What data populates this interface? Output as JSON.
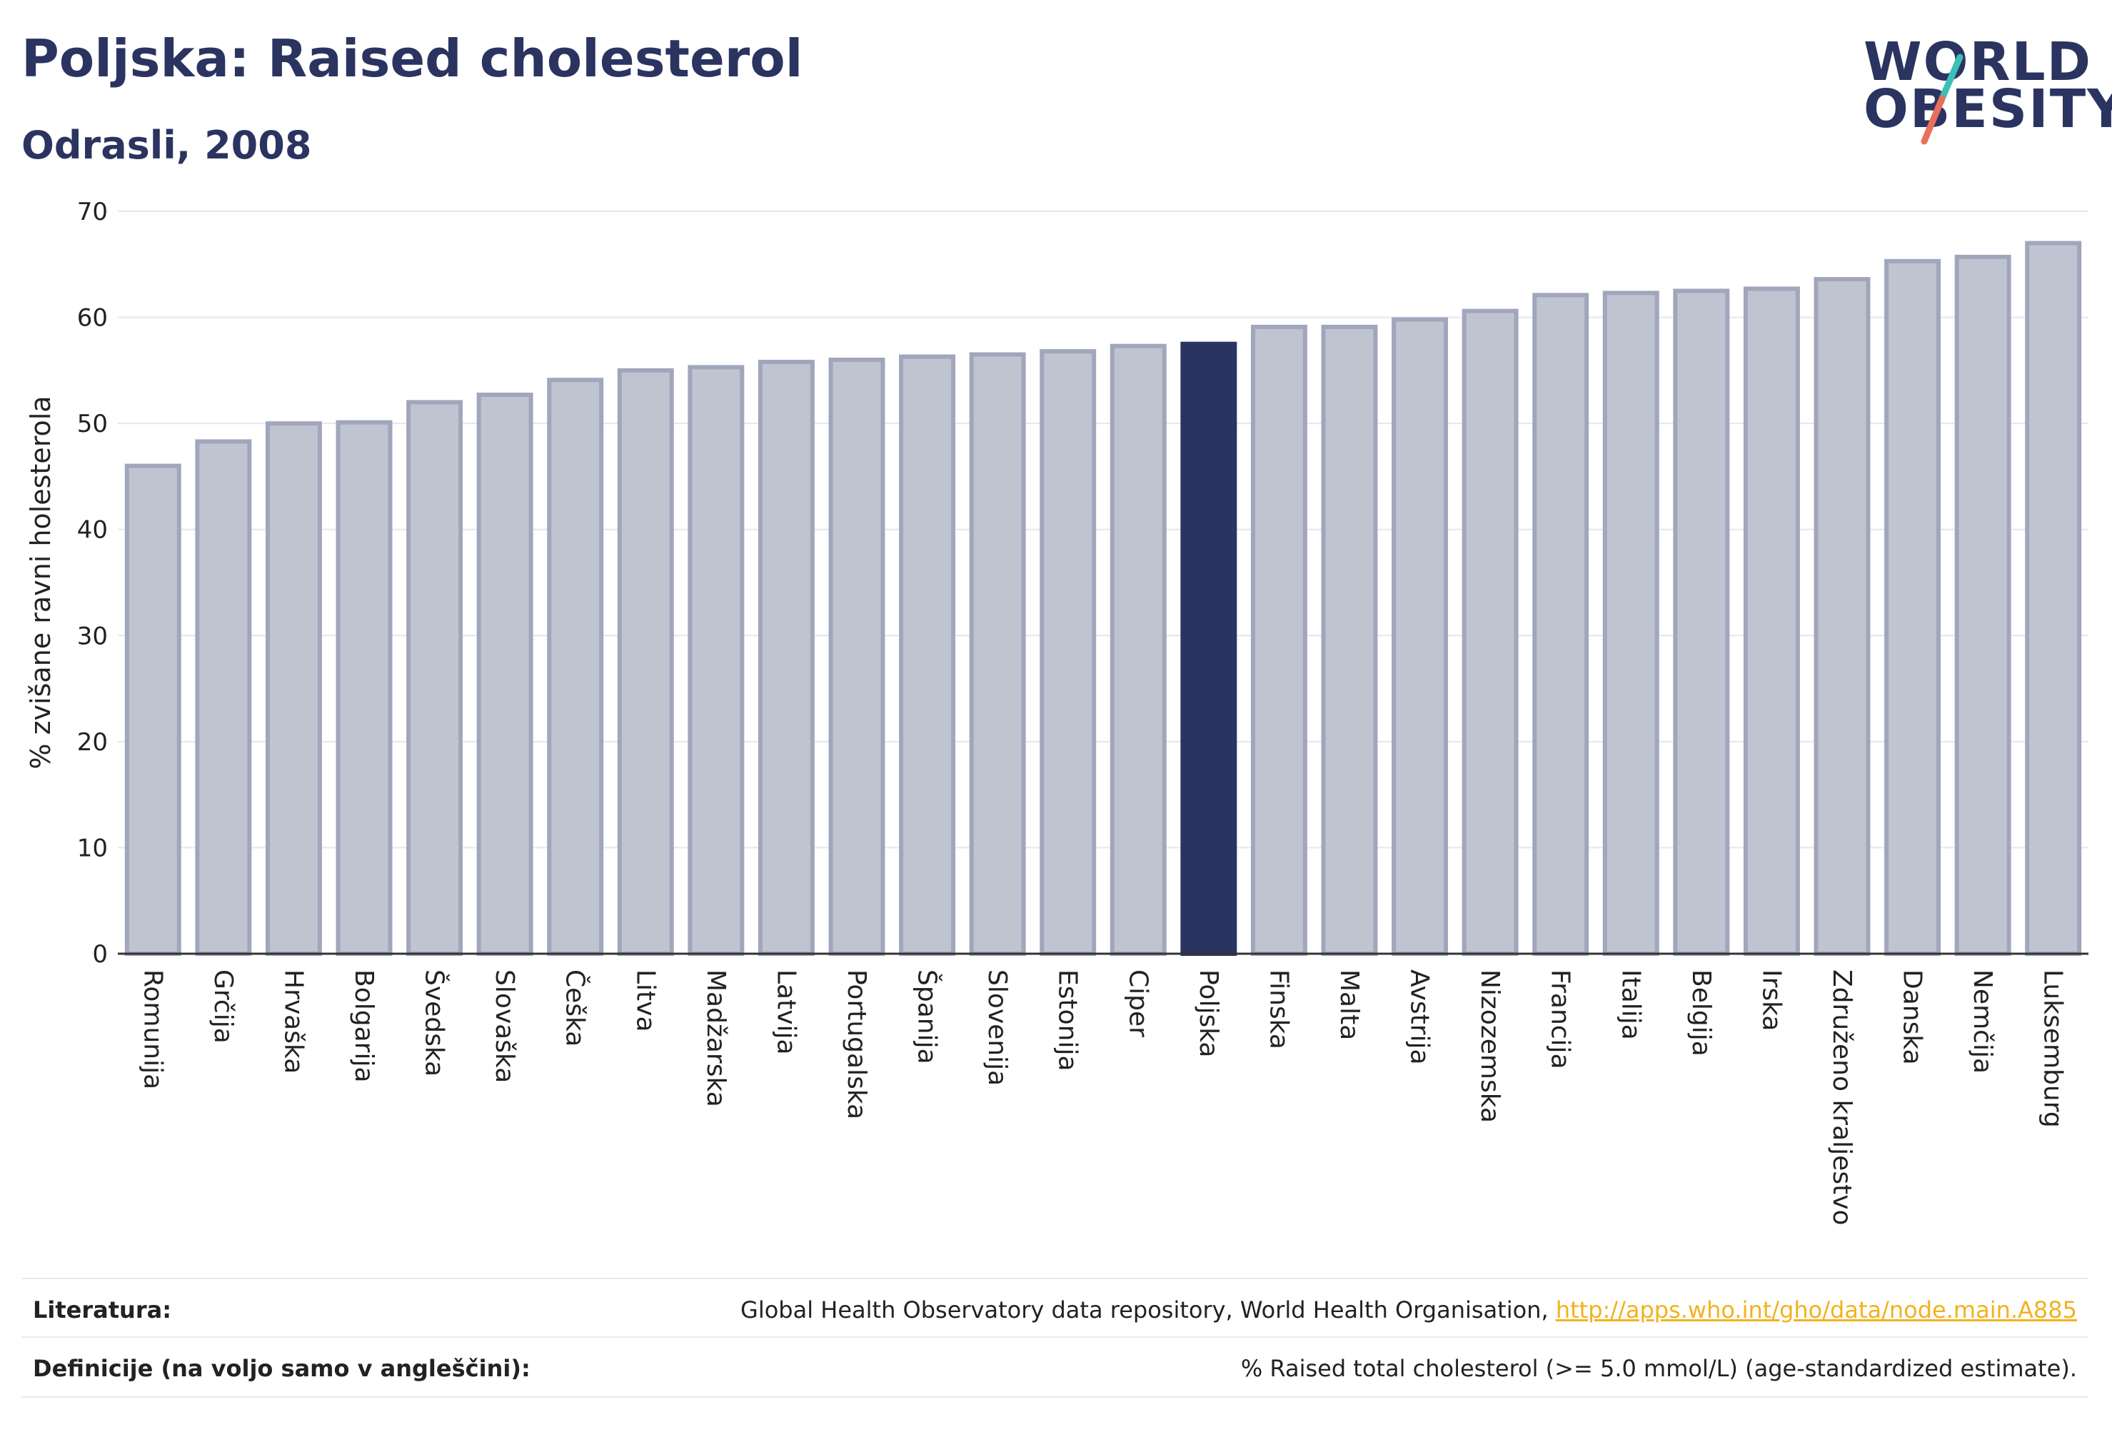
{
  "header": {
    "title": "Poljska: Raised cholesterol",
    "subtitle": "Odrasli, 2008"
  },
  "logo": {
    "line1": "WORLD",
    "line2": "OBESITY",
    "colors": {
      "text": "#2b3460",
      "slash_top": "#3cbfb4",
      "slash_bottom": "#e8705a"
    }
  },
  "colors": {
    "bar_fill": "#c0c4d1",
    "bar_stroke": "#a0a6bb",
    "highlight": "#2b3460",
    "grid": "#e6e6ee",
    "axis": "#333333"
  },
  "chart_data": {
    "type": "bar",
    "ylabel": "% zvišane ravni holesterola",
    "ylim": [
      0,
      70
    ],
    "yticks": [
      0,
      10,
      20,
      30,
      40,
      50,
      60,
      70
    ],
    "highlight": "Poljska",
    "categories": [
      "Romunija",
      "Grčija",
      "Hrvaška",
      "Bolgarija",
      "Švedska",
      "Slovaška",
      "Češka",
      "Litva",
      "Madžarska",
      "Latvija",
      "Portugalska",
      "Španija",
      "Slovenija",
      "Estonija",
      "Ciper",
      "Poljska",
      "Finska",
      "Malta",
      "Avstrija",
      "Nizozemska",
      "Francija",
      "Italija",
      "Belgija",
      "Irska",
      "Združeno kraljestvo",
      "Danska",
      "Nemčija",
      "Luksemburg"
    ],
    "values": [
      46.0,
      48.3,
      50.0,
      50.1,
      52.0,
      52.7,
      54.1,
      55.0,
      55.3,
      55.8,
      56.0,
      56.3,
      56.5,
      56.8,
      57.3,
      57.5,
      59.1,
      59.1,
      59.8,
      60.6,
      62.1,
      62.3,
      62.5,
      62.7,
      63.6,
      65.3,
      65.7,
      67.0
    ]
  },
  "footer": {
    "literature_label": "Literatura:",
    "literature_text": "Global Health Observatory data repository, World Health Organisation, ",
    "literature_link": "http://apps.who.int/gho/data/node.main.A885",
    "definition_label": "Definicije (na voljo samo v angleščini):",
    "definition_text": "% Raised total cholesterol (>= 5.0 mmol/L) (age-standardized estimate)."
  }
}
